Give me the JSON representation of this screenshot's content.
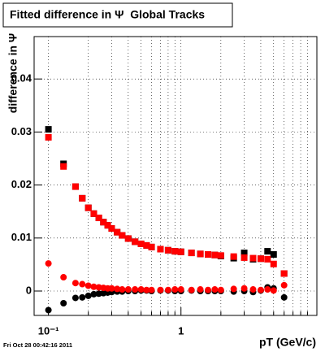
{
  "chart_data": {
    "type": "scatter",
    "title": "Fitted difference in Ψ  Global Tracks",
    "x_label": "pT (GeV/c)",
    "y_label": "difference in Ψ",
    "footer": "Fri Oct 28 00:42:16 2011",
    "log_x": true,
    "grid": true,
    "xlim": [
      0.078,
      10.6
    ],
    "ylim": [
      -0.0046,
      0.048
    ],
    "xticks": [
      {
        "value": 0.1,
        "label": "10⁻¹"
      },
      1
    ],
    "xminorticks": [
      0.2,
      0.3,
      0.4,
      0.5,
      0.6,
      0.7,
      0.8,
      0.9,
      2,
      3,
      4,
      5,
      6,
      7,
      8,
      9
    ],
    "yticks": [
      0,
      0.01,
      0.02,
      0.03,
      0.04
    ],
    "x": [
      0.1,
      0.13,
      0.16,
      0.18,
      0.2,
      0.22,
      0.24,
      0.26,
      0.28,
      0.3,
      0.33,
      0.36,
      0.4,
      0.45,
      0.5,
      0.55,
      0.6,
      0.7,
      0.8,
      0.9,
      1.0,
      1.2,
      1.4,
      1.6,
      1.8,
      2.0,
      2.5,
      3.0,
      3.5,
      4.0,
      4.5,
      5.0,
      6.0
    ],
    "series": [
      {
        "color": "#000000",
        "marker": "square",
        "values": [
          0.0305,
          0.024,
          0.0197,
          0.0175,
          0.0157,
          0.0146,
          0.0138,
          0.013,
          0.0124,
          0.0118,
          0.0111,
          0.0105,
          0.0099,
          0.0093,
          0.0089,
          0.0086,
          0.0083,
          0.0079,
          0.0077,
          0.0075,
          0.0074,
          0.0072,
          0.007,
          0.0069,
          0.0068,
          0.0066,
          0.0062,
          0.0072,
          0.006,
          0.0061,
          0.0075,
          0.0069,
          0.0033
        ]
      },
      {
        "color": "#ff0000",
        "marker": "square",
        "values": [
          0.029,
          0.0235,
          0.0197,
          0.0175,
          0.0157,
          0.0146,
          0.0138,
          0.013,
          0.0124,
          0.0118,
          0.0111,
          0.0105,
          0.0099,
          0.0093,
          0.0089,
          0.0086,
          0.0083,
          0.0079,
          0.0077,
          0.0075,
          0.0074,
          0.0072,
          0.007,
          0.0069,
          0.0068,
          0.0067,
          0.0065,
          0.0063,
          0.0062,
          0.0061,
          0.006,
          0.0051,
          0.0033
        ]
      },
      {
        "color": "#000000",
        "marker": "circle",
        "values": [
          -0.0036,
          -0.0023,
          -0.0013,
          -0.0012,
          -0.0009,
          -0.0006,
          -0.0005,
          -0.0004,
          -0.0003,
          -0.0002,
          -0.0001,
          -0.0001,
          0,
          0,
          0.0001,
          0.0001,
          0,
          0.0001,
          0.0001,
          0,
          0,
          0.0001,
          0,
          0,
          0,
          0,
          -0.0001,
          0,
          -0.0002,
          0.0001,
          0.0007,
          0.0005,
          -0.0012
        ]
      },
      {
        "color": "#ff0000",
        "marker": "circle",
        "values": [
          0.0052,
          0.0026,
          0.0015,
          0.0013,
          0.001,
          0.0008,
          0.0007,
          0.0006,
          0.0005,
          0.0005,
          0.0004,
          0.0003,
          0.0003,
          0.0003,
          0.0003,
          0.0002,
          0.0002,
          0.0002,
          0.0002,
          0.0003,
          0.0003,
          0.0002,
          0.0003,
          0.0002,
          0.0003,
          0.0002,
          0.0004,
          0.0005,
          0.0003,
          0.0002,
          0.0003,
          0.0001,
          0.0011
        ]
      }
    ]
  }
}
